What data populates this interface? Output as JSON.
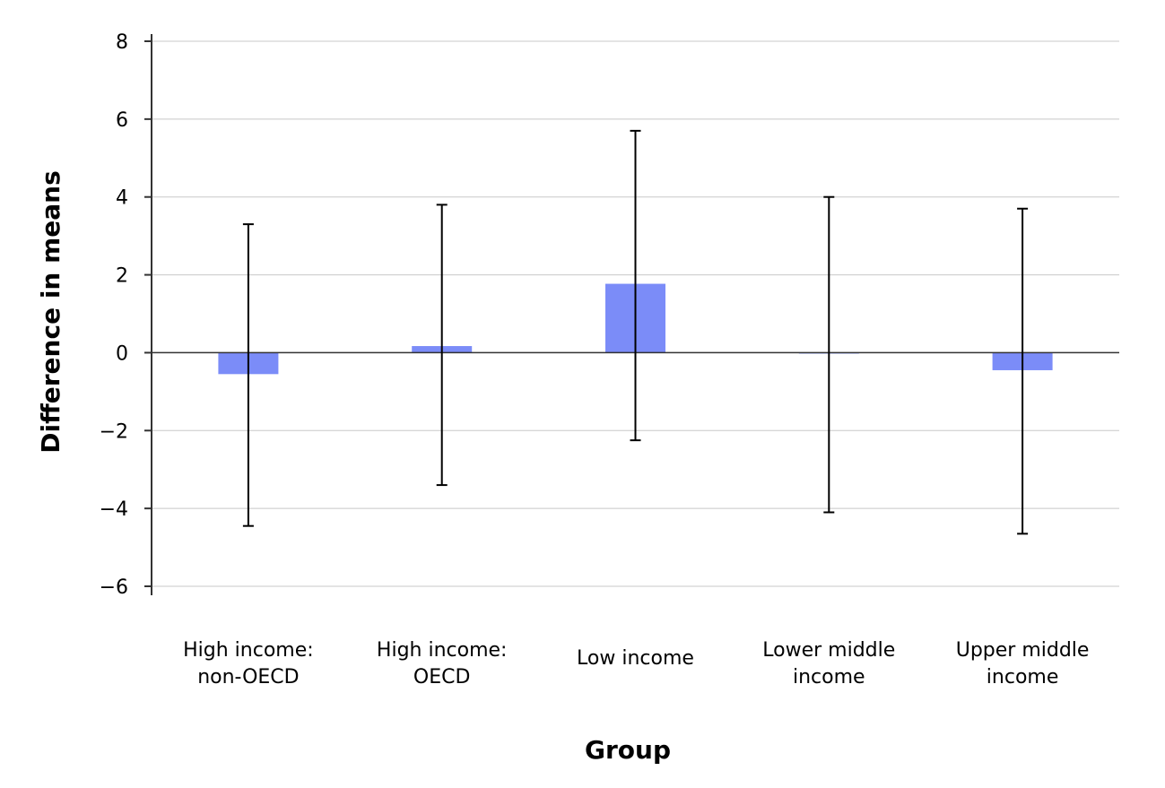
{
  "chart_data": {
    "type": "bar",
    "xlabel": "Group",
    "ylabel": "Difference in means",
    "ylim": [
      -6,
      8
    ],
    "yticks": [
      8,
      6,
      4,
      2,
      0,
      -2,
      -4,
      -6
    ],
    "ytick_labels": [
      "8",
      "6",
      "4",
      "2",
      "0",
      "−2",
      "−4",
      "−6"
    ],
    "grid": true,
    "bar_color": "#7b8cf8",
    "categories": [
      [
        "High income:",
        "non-OECD"
      ],
      [
        "High income:",
        "OECD"
      ],
      [
        "Low income"
      ],
      [
        "Lower middle",
        "income"
      ],
      [
        "Upper middle",
        "income"
      ]
    ],
    "values": [
      -0.55,
      0.17,
      1.77,
      0.0,
      -0.45
    ],
    "error_low": [
      -4.45,
      -3.4,
      -2.25,
      -4.1,
      -4.65
    ],
    "error_high": [
      3.3,
      3.8,
      5.7,
      4.0,
      3.7
    ]
  }
}
